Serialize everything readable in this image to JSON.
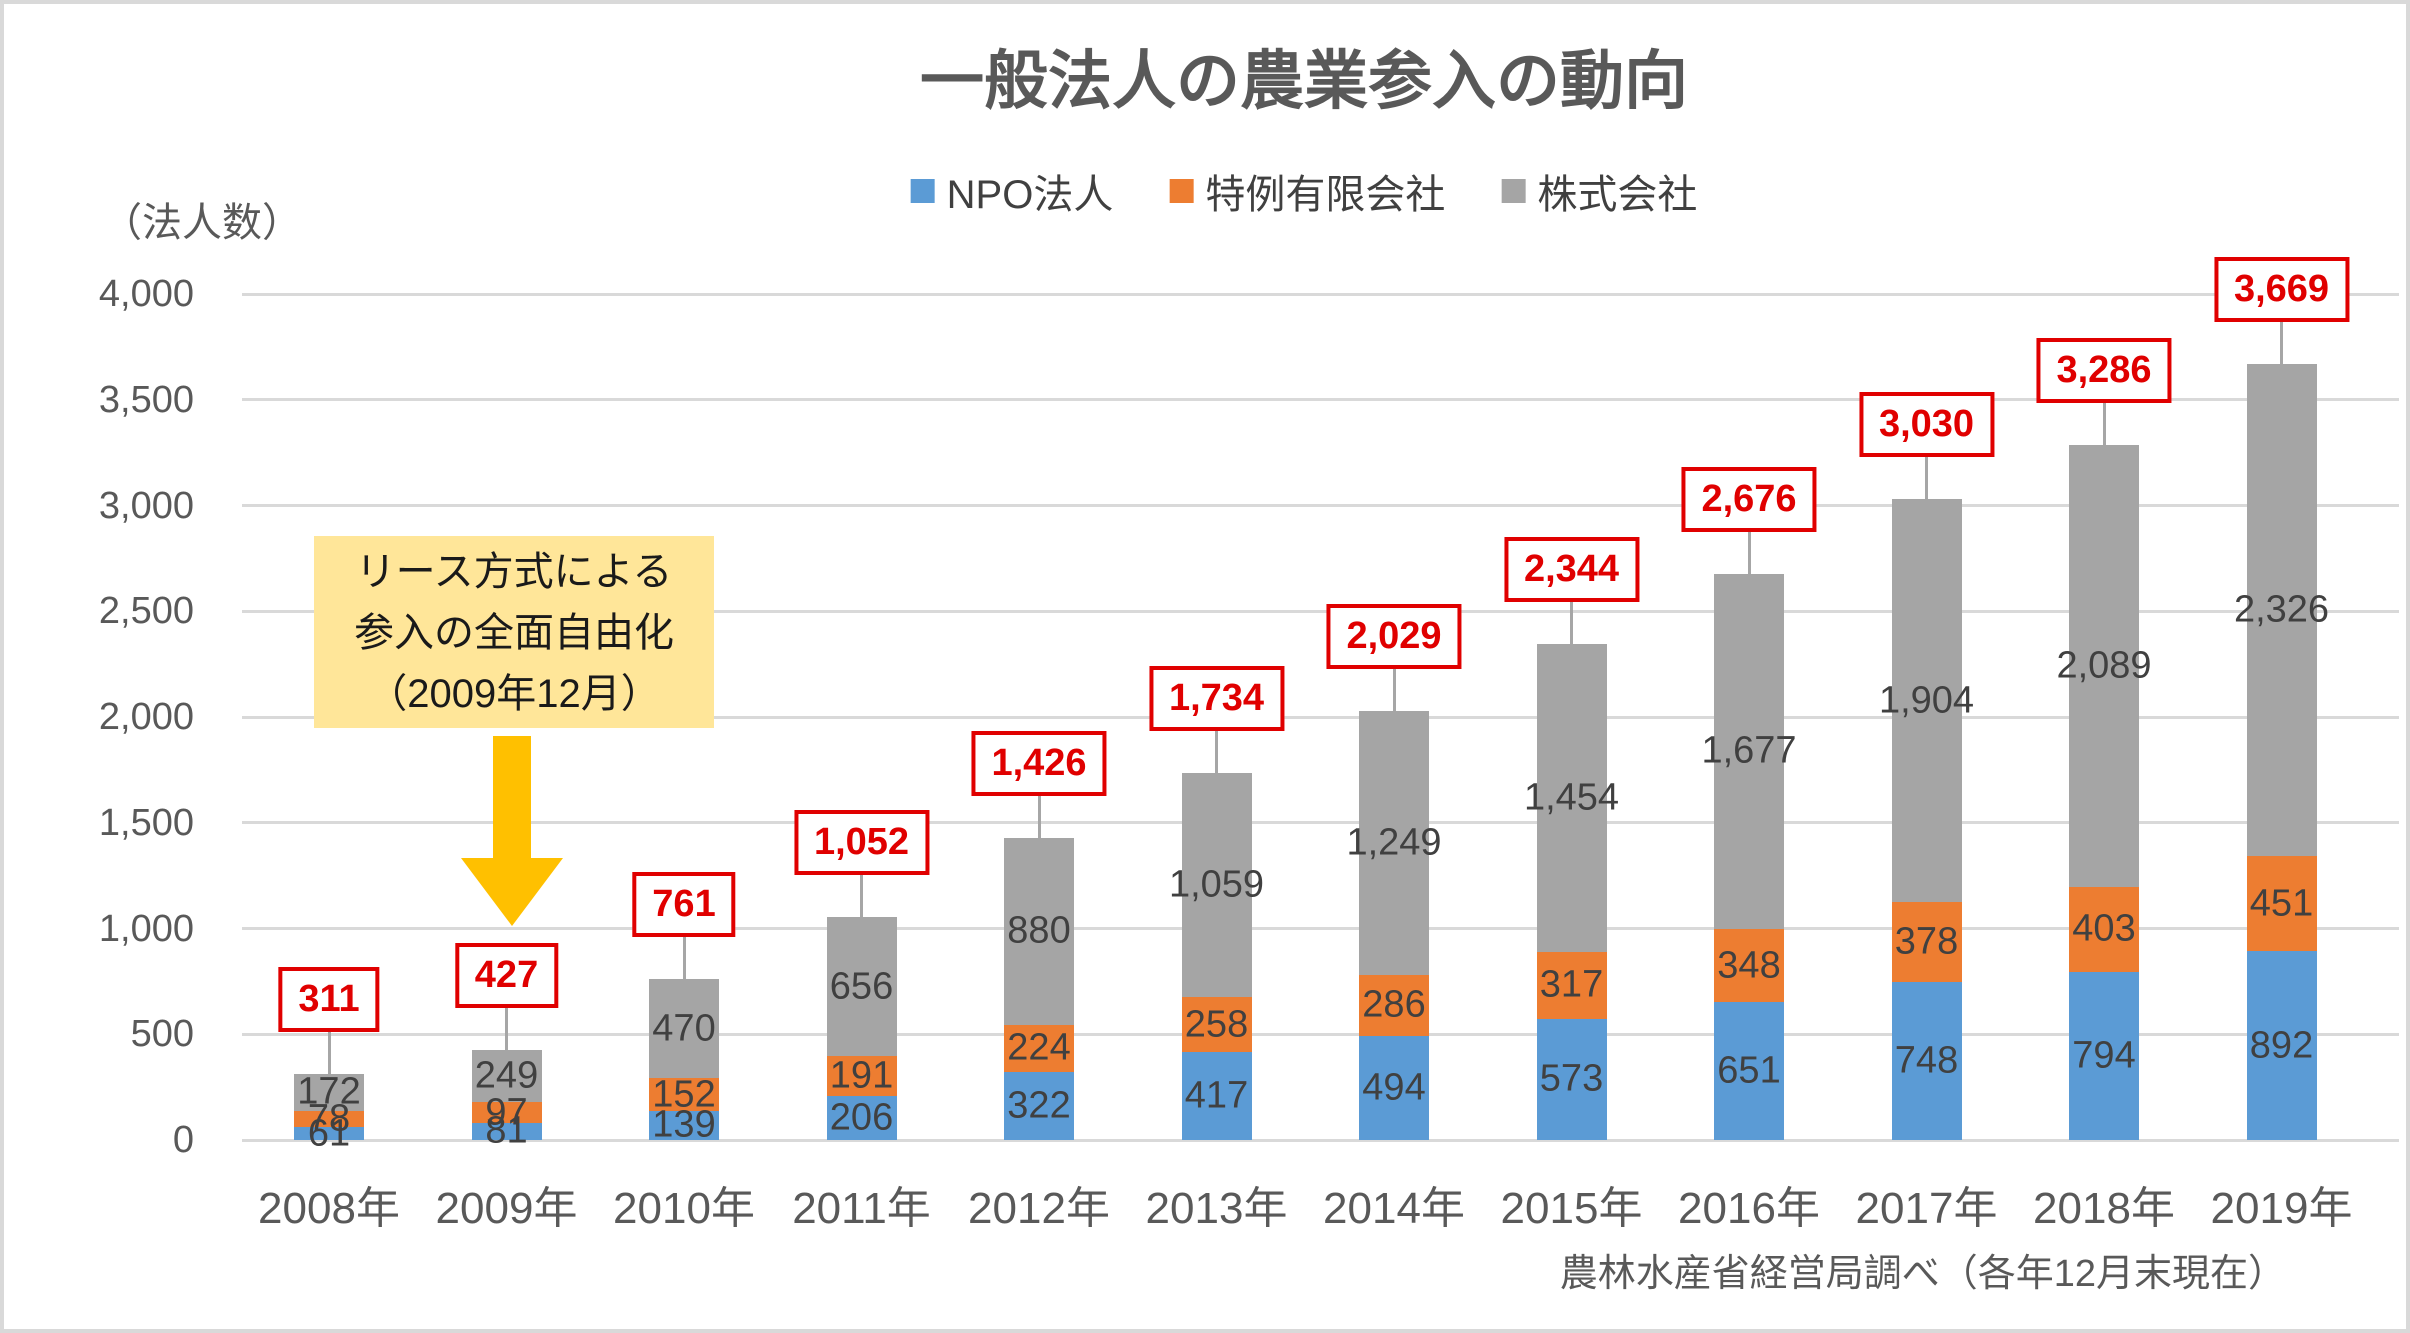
{
  "page": {
    "title": "一般法人の農業参入の動向",
    "y_axis_unit": "（法人数）",
    "source_note": "農林水産省経営局調べ（各年12月末現在）"
  },
  "annotation": {
    "lines": [
      "リース方式による",
      "参入の全面自由化",
      "（2009年12月）"
    ],
    "box_color": "#FFE699",
    "arrow_color": "#FFC000"
  },
  "colors": {
    "npo": "#5B9BD5",
    "tokurei": "#ED7D31",
    "kabushiki": "#A5A5A5",
    "total_callout": "#E00000",
    "gridline": "#D9D9D9",
    "leader_line": "#A6A6A6",
    "axis_text": "#595959",
    "label_text": "#404040"
  },
  "chart_data": {
    "type": "bar",
    "stacked": true,
    "title": "一般法人の農業参入の動向",
    "ylabel": "（法人数）",
    "ylim": [
      0,
      4000
    ],
    "grid": true,
    "legend_position": "top",
    "categories": [
      "2008年",
      "2009年",
      "2010年",
      "2011年",
      "2012年",
      "2013年",
      "2014年",
      "2015年",
      "2016年",
      "2017年",
      "2018年",
      "2019年"
    ],
    "series": [
      {
        "name": "NPO法人",
        "key": "npo",
        "values": [
          61,
          81,
          139,
          206,
          322,
          417,
          494,
          573,
          651,
          748,
          794,
          892
        ],
        "values_fmt": [
          "61",
          "81",
          "139",
          "206",
          "322",
          "417",
          "494",
          "573",
          "651",
          "748",
          "794",
          "892"
        ]
      },
      {
        "name": "特例有限会社",
        "key": "tokurei",
        "values": [
          78,
          97,
          152,
          191,
          224,
          258,
          286,
          317,
          348,
          378,
          403,
          451
        ],
        "values_fmt": [
          "78",
          "97",
          "152",
          "191",
          "224",
          "258",
          "286",
          "317",
          "348",
          "378",
          "403",
          "451"
        ]
      },
      {
        "name": "株式会社",
        "key": "kabushiki",
        "values": [
          172,
          249,
          470,
          656,
          880,
          1059,
          1249,
          1454,
          1677,
          1904,
          2089,
          2326
        ],
        "values_fmt": [
          "172",
          "249",
          "470",
          "656",
          "880",
          "1,059",
          "1,249",
          "1,454",
          "1,677",
          "1,904",
          "2,089",
          "2,326"
        ]
      }
    ],
    "totals": [
      311,
      427,
      761,
      1052,
      1426,
      1734,
      2029,
      2344,
      2676,
      3030,
      3286,
      3669
    ],
    "totals_fmt": [
      "311",
      "427",
      "761",
      "1,052",
      "1,426",
      "1,734",
      "2,029",
      "2,344",
      "2,676",
      "3,030",
      "3,286",
      "3,669"
    ],
    "y_ticks": [
      {
        "value": 0,
        "label": "0"
      },
      {
        "value": 500,
        "label": "500"
      },
      {
        "value": 1000,
        "label": "1,000"
      },
      {
        "value": 1500,
        "label": "1,500"
      },
      {
        "value": 2000,
        "label": "2,000"
      },
      {
        "value": 2500,
        "label": "2,500"
      },
      {
        "value": 3000,
        "label": "3,000"
      },
      {
        "value": 3500,
        "label": "3,500"
      },
      {
        "value": 4000,
        "label": "4,000"
      }
    ]
  }
}
